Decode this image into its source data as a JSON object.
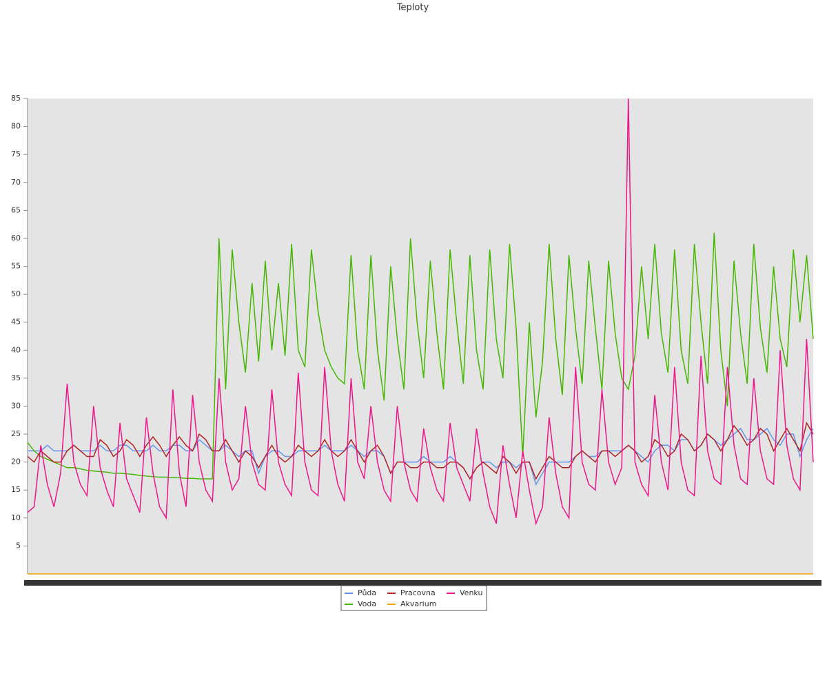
{
  "chart_data": {
    "type": "line",
    "title": "Teploty",
    "ylim": [
      0,
      85
    ],
    "yticks": [
      5,
      10,
      15,
      20,
      25,
      30,
      35,
      40,
      45,
      50,
      55,
      60,
      65,
      70,
      75,
      80,
      85
    ],
    "series": [
      {
        "name": "Půda",
        "color": "#6495ed",
        "values": [
          22,
          22,
          22,
          23,
          22,
          22,
          22,
          23,
          22,
          22,
          22,
          23,
          22,
          22,
          23,
          23,
          22,
          22,
          22,
          23,
          22,
          22,
          23,
          23,
          22,
          22,
          24,
          23,
          22,
          22,
          23,
          22,
          21,
          22,
          22,
          18,
          21,
          22,
          22,
          21,
          21,
          22,
          22,
          22,
          22,
          23,
          22,
          22,
          22,
          23,
          22,
          21,
          22,
          22,
          21,
          18,
          20,
          20,
          20,
          20,
          21,
          20,
          20,
          20,
          21,
          20,
          19,
          17,
          19,
          20,
          20,
          19,
          20,
          20,
          19,
          20,
          20,
          16,
          18,
          20,
          20,
          20,
          20,
          21,
          22,
          21,
          21,
          22,
          22,
          22,
          22,
          23,
          22,
          21,
          20,
          22,
          23,
          23,
          22,
          24,
          24,
          22,
          23,
          25,
          24,
          23,
          24,
          25,
          26,
          24,
          24,
          25,
          26,
          24,
          23,
          25,
          25,
          21,
          24,
          26
        ]
      },
      {
        "name": "Voda",
        "color": "#44b800",
        "values": [
          23.5,
          22,
          21,
          20.5,
          20,
          19.5,
          19,
          19,
          18.8,
          18.5,
          18.4,
          18.3,
          18.2,
          18,
          18,
          17.9,
          17.8,
          17.6,
          17.5,
          17.4,
          17.3,
          17.3,
          17.2,
          17.2,
          17.1,
          17.1,
          17,
          17,
          17,
          60,
          33,
          58,
          45,
          36,
          52,
          38,
          56,
          40,
          52,
          39,
          59,
          40,
          37,
          58,
          47,
          40,
          37,
          35,
          34,
          57,
          40,
          33,
          57,
          40,
          31,
          55,
          42,
          33,
          60,
          45,
          35,
          56,
          43,
          33,
          58,
          45,
          34,
          57,
          40,
          33,
          58,
          42,
          35,
          59,
          44,
          21,
          45,
          28,
          38,
          59,
          42,
          32,
          57,
          44,
          34,
          56,
          44,
          33,
          56,
          43,
          35,
          33,
          39,
          55,
          42,
          59,
          43,
          36,
          58,
          40,
          34,
          59,
          45,
          34,
          61,
          40,
          30,
          56,
          43,
          34,
          59,
          44,
          36,
          55,
          42,
          37,
          58,
          45,
          57,
          42
        ]
      },
      {
        "name": "Pracovna",
        "color": "#b22222",
        "values": [
          21,
          20,
          22,
          21,
          20,
          20,
          22,
          23,
          22,
          21,
          21,
          24,
          23,
          21,
          22,
          24,
          23,
          21,
          23,
          24.5,
          23,
          21,
          23,
          24.5,
          23,
          22,
          25,
          24,
          22,
          22,
          24,
          22,
          20,
          22,
          21,
          19,
          21,
          23,
          21,
          20,
          21,
          23,
          22,
          21,
          22,
          24,
          22,
          21,
          22,
          24,
          22,
          20,
          22,
          23,
          21,
          18,
          20,
          20,
          19,
          19,
          20,
          20,
          19,
          19,
          20,
          20,
          19,
          17,
          19,
          20,
          19,
          18,
          21,
          20,
          18,
          20,
          20,
          17,
          19,
          21,
          20,
          19,
          19,
          21,
          22,
          21,
          20,
          22,
          22,
          21,
          22,
          23,
          22,
          20,
          21,
          24,
          23,
          21,
          22,
          25,
          24,
          22,
          23,
          25,
          24,
          22,
          24,
          26.5,
          25,
          23,
          24,
          26,
          25,
          22,
          24,
          26,
          24,
          22,
          27,
          25
        ]
      },
      {
        "name": "Akvarium",
        "color": "#f0a000",
        "values": [
          0,
          0,
          0,
          0,
          0,
          0,
          0,
          0,
          0,
          0,
          0,
          0,
          0,
          0,
          0,
          0,
          0,
          0,
          0,
          0,
          0,
          0,
          0,
          0,
          0,
          0,
          0,
          0,
          0,
          0,
          0,
          0,
          0,
          0,
          0,
          0,
          0,
          0,
          0,
          0,
          0,
          0,
          0,
          0,
          0,
          0,
          0,
          0,
          0,
          0,
          0,
          0,
          0,
          0,
          0,
          0,
          0,
          0,
          0,
          0,
          0,
          0,
          0,
          0,
          0,
          0,
          0,
          0,
          0,
          0,
          0,
          0,
          0,
          0,
          0,
          0,
          0,
          0,
          0,
          0,
          0,
          0,
          0,
          0,
          0,
          0,
          0,
          0,
          0,
          0,
          0,
          0,
          0,
          0,
          0,
          0,
          0,
          0,
          0,
          0,
          0,
          0,
          0,
          0,
          0,
          0,
          0,
          0,
          0,
          0,
          0,
          0,
          0,
          0,
          0,
          0,
          0,
          0,
          0,
          0
        ]
      },
      {
        "name": "Venku",
        "color": "#f0148c",
        "values": [
          11,
          12,
          23,
          16,
          12,
          18,
          34,
          20,
          16,
          14,
          30,
          19,
          15,
          12,
          27,
          17,
          14,
          11,
          28,
          18,
          12,
          10,
          33,
          18,
          12,
          32,
          20,
          15,
          13,
          35,
          20,
          15,
          17,
          30,
          20,
          16,
          15,
          33,
          20,
          16,
          14,
          36,
          20,
          15,
          14,
          37,
          22,
          16,
          13,
          35,
          20,
          17,
          30,
          20,
          15,
          13,
          30,
          20,
          15,
          13,
          26,
          19,
          15,
          13,
          27,
          19,
          16,
          13,
          26,
          18,
          12,
          9,
          23,
          16,
          10,
          22,
          15,
          9,
          12,
          28,
          18,
          12,
          10,
          37,
          20,
          16,
          15,
          33,
          20,
          16,
          19,
          85,
          20,
          16,
          14,
          32,
          20,
          15,
          37,
          20,
          15,
          14,
          39,
          22,
          17,
          16,
          37,
          23,
          17,
          16,
          35,
          22,
          17,
          16,
          40,
          23,
          17,
          15,
          42,
          20
        ]
      }
    ]
  }
}
